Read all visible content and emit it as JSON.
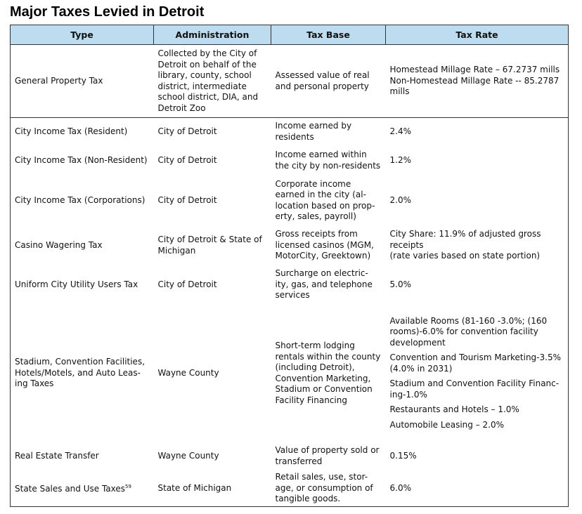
{
  "title": "Major Taxes Levied in Detroit",
  "table": {
    "headers": [
      "Type",
      "Administration",
      "Tax Base",
      "Tax Rate"
    ],
    "rows": [
      {
        "type": [
          "General Property Tax"
        ],
        "administration": [
          "Collected by the City of",
          "Detroit on behalf of the",
          "library, county, school",
          "district, intermediate",
          "school district, DIA, and",
          "Detroit Zoo"
        ],
        "tax_base": [
          "Assessed value of real",
          "and personal property"
        ],
        "tax_rate": [
          "Homestead Millage Rate – 67.2737 mills",
          "Non-Homestead Millage Rate -- 85.2787",
          "mills"
        ]
      },
      {
        "type": [
          "City Income Tax (Resident)"
        ],
        "administration": [
          "City of Detroit"
        ],
        "tax_base": [
          "Income earned by",
          "residents"
        ],
        "tax_rate": [
          "2.4%"
        ]
      },
      {
        "type": [
          "City Income Tax (Non-Resident)"
        ],
        "administration": [
          "City of Detroit"
        ],
        "tax_base": [
          "Income earned within",
          "the city by non-residents"
        ],
        "tax_rate": [
          "1.2%"
        ]
      },
      {
        "type": [
          "City Income Tax (Corporations)"
        ],
        "administration": [
          "City of Detroit"
        ],
        "tax_base": [
          "Corporate income",
          "earned in the city (al-",
          "location based on prop-",
          "erty, sales, payroll)"
        ],
        "tax_rate": [
          "2.0%"
        ]
      },
      {
        "type": [
          "Casino Wagering Tax"
        ],
        "administration": [
          "City of Detroit & State of",
          "Michigan"
        ],
        "tax_base": [
          "Gross receipts from",
          "licensed casinos (MGM,",
          "MotorCity, Greektown)"
        ],
        "tax_rate": [
          "City Share: 11.9% of adjusted gross",
          "receipts",
          "(rate varies based on state portion)"
        ]
      },
      {
        "type": [
          "Uniform City Utility Users Tax"
        ],
        "administration": [
          "City of Detroit"
        ],
        "tax_base": [
          "Surcharge on electric-",
          "ity, gas, and telephone",
          "services"
        ],
        "tax_rate": [
          "5.0%"
        ]
      },
      {
        "type": [
          "Stadium, Convention Facilities,",
          "Hotels/Motels, and Auto Leas-",
          "ing Taxes"
        ],
        "administration": [
          "Wayne County"
        ],
        "tax_base": [
          "Short-term lodging",
          "rentals within the county",
          "(including Detroit),",
          "Convention Marketing,",
          "Stadium or Convention",
          "Facility Financing"
        ],
        "tax_rate": [
          [
            "Available Rooms (81-160 -3.0%; (160",
            "rooms)-6.0% for convention facility",
            "development"
          ],
          [
            "Convention and Tourism Marketing-3.5%",
            "(4.0% in 2031)"
          ],
          [
            "Stadium and Convention Facility Financ-",
            "ing-1.0%"
          ],
          [
            "Restaurants and Hotels – 1.0%"
          ],
          [
            "Automobile Leasing – 2.0%"
          ]
        ]
      },
      {
        "type": [
          "Real Estate Transfer"
        ],
        "administration": [
          "Wayne County"
        ],
        "tax_base": [
          "Value of property sold or",
          "transferred"
        ],
        "tax_rate": [
          "0.15%"
        ]
      },
      {
        "type": [
          "State Sales and Use Taxes"
        ],
        "footnote": "59",
        "administration": [
          "State of Michigan"
        ],
        "tax_base": [
          "Retail sales, use, stor-",
          "age, or consumption of",
          "tangible goods."
        ],
        "tax_rate": [
          "6.0%"
        ]
      }
    ]
  }
}
